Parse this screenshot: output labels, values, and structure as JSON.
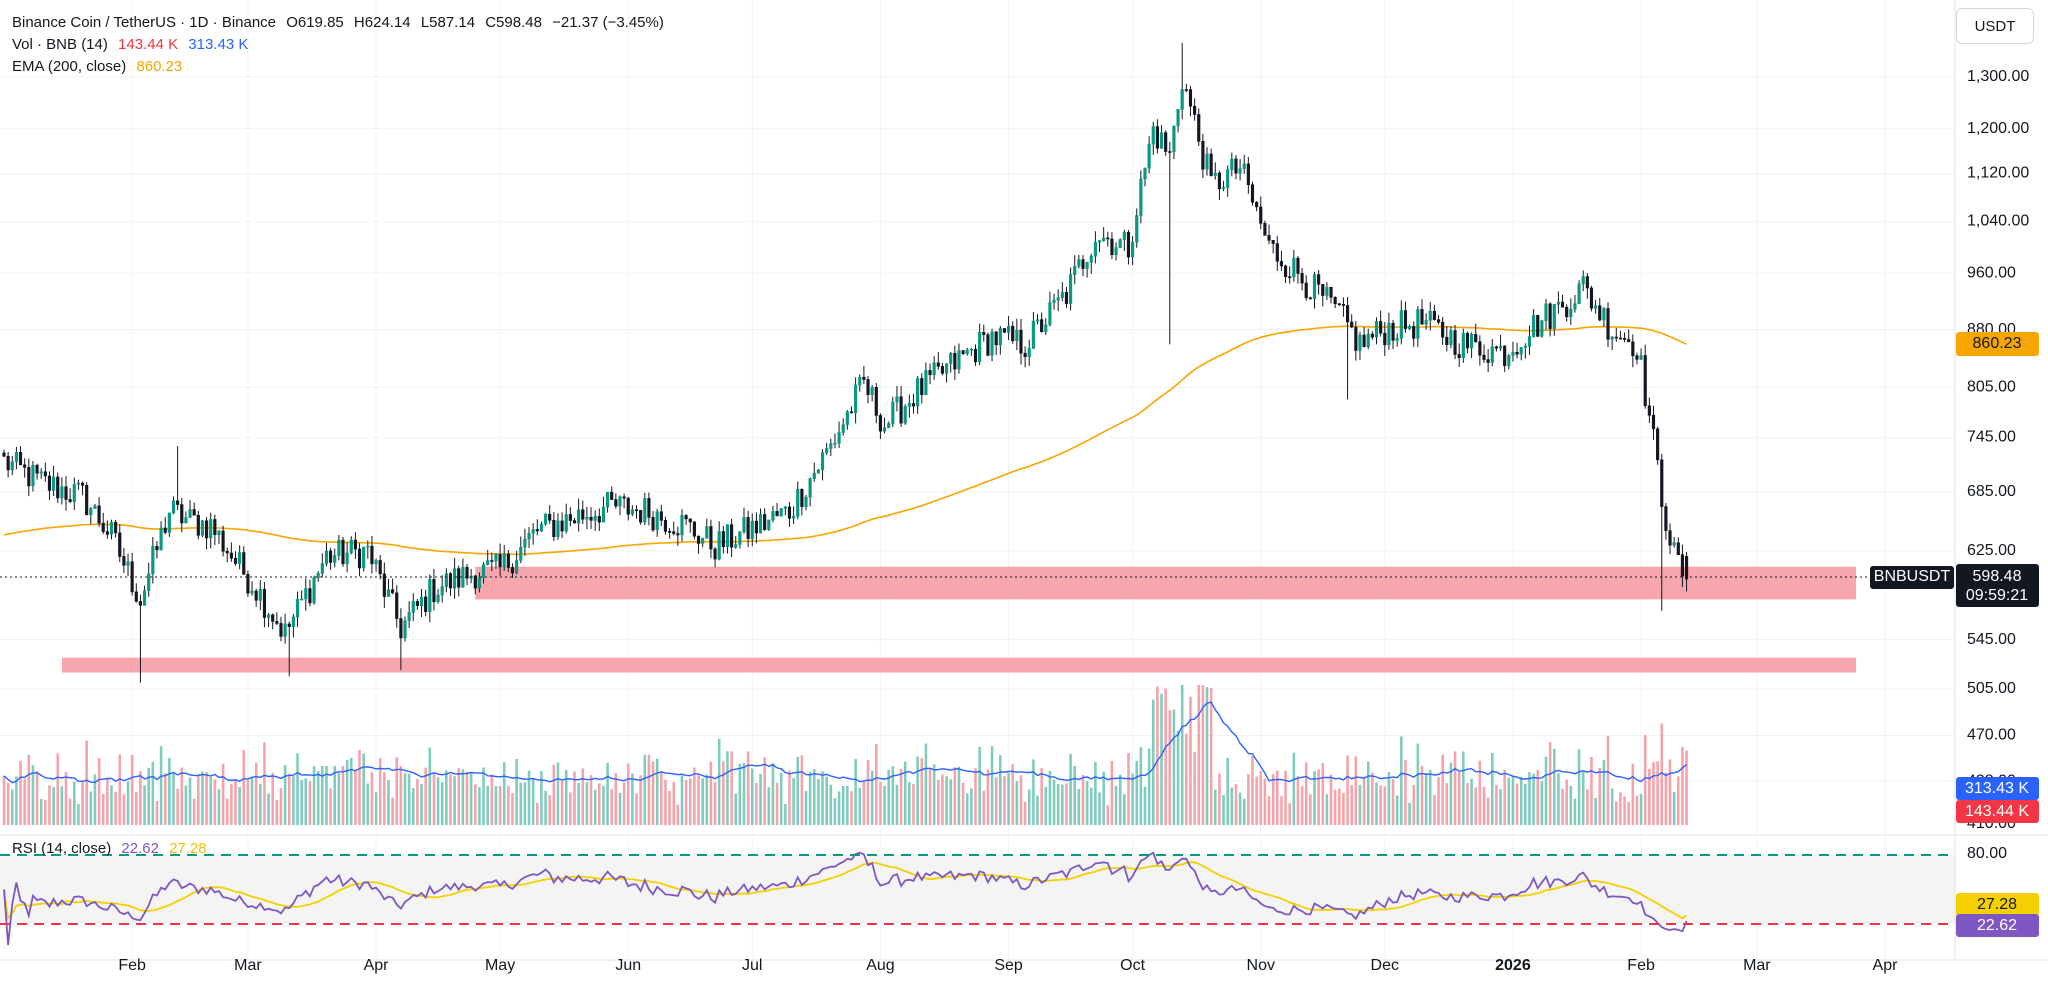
{
  "legend": {
    "title": "Binance Coin / TetherUS · 1D · Binance",
    "open": "O619.85",
    "high": "H624.14",
    "low": "L587.14",
    "close": "C598.48",
    "change": "−21.37 (−3.45%)",
    "vol_label": "Vol · BNB (14)",
    "vol_value": "143.44 K",
    "vol_ma": "313.43 K",
    "ema_label": "EMA (200, close)",
    "ema_value": "860.23",
    "rsi_label": "RSI (14, close)",
    "rsi_value": "22.62",
    "rsi_ma": "27.28"
  },
  "currency": "USDT",
  "symbol_tag": "BNBUSDT",
  "price_tag": "598.48",
  "countdown": "09:59:21",
  "ema_tag": "860.23",
  "vol_ma_tag": "313.43 K",
  "vol_tag": "143.44 K",
  "rsi_ma_tag": "27.28",
  "rsi_tag": "22.62",
  "colors": {
    "up": "#089981",
    "down": "#f23645",
    "ema": "#f7a600",
    "vol_ma": "#2962ff",
    "rsi": "#7e57c2",
    "rsi_ma": "#f5d000",
    "zone": "#f7a1a9"
  },
  "chart_data": [
    {
      "type": "candlestick",
      "title": "Binance Coin / TetherUS · 1D · Binance",
      "price_axis_ticks": [
        "1,300.00",
        "1,200.00",
        "1,120.00",
        "1,040.00",
        "960.00",
        "880.00",
        "805.00",
        "745.00",
        "685.00",
        "625.00",
        "545.00",
        "505.00",
        "470.00",
        "438.00",
        "410.00"
      ],
      "price_axis_values": [
        1300,
        1200,
        1120,
        1040,
        960,
        880,
        805,
        745,
        685,
        625,
        545,
        505,
        470,
        438,
        410
      ],
      "time_axis_labels": [
        "Feb",
        "Mar",
        "Apr",
        "May",
        "Jun",
        "Jul",
        "Aug",
        "Sep",
        "Oct",
        "Nov",
        "Dec",
        "2026",
        "Feb",
        "Mar",
        "Apr"
      ],
      "time_axis_dates": [
        "2025-02-01",
        "2025-03-01",
        "2025-04-01",
        "2025-05-01",
        "2025-06-01",
        "2025-07-01",
        "2025-08-01",
        "2025-09-01",
        "2025-10-01",
        "2025-11-01",
        "2025-12-01",
        "2026-01-01",
        "2026-02-01",
        "2026-03-01",
        "2026-04-01"
      ],
      "price_scale": "log",
      "last_close": 598.48,
      "anchors_close": [
        [
          "2025-01-01",
          718
        ],
        [
          "2025-01-10",
          695
        ],
        [
          "2025-01-20",
          680
        ],
        [
          "2025-01-27",
          640
        ],
        [
          "2025-02-03",
          580
        ],
        [
          "2025-02-10",
          665
        ],
        [
          "2025-02-15",
          655
        ],
        [
          "2025-02-20",
          650
        ],
        [
          "2025-02-27",
          610
        ],
        [
          "2025-03-03",
          590
        ],
        [
          "2025-03-10",
          550
        ],
        [
          "2025-03-20",
          620
        ],
        [
          "2025-03-30",
          625
        ],
        [
          "2025-04-07",
          555
        ],
        [
          "2025-04-15",
          590
        ],
        [
          "2025-04-25",
          605
        ],
        [
          "2025-05-01",
          607
        ],
        [
          "2025-05-10",
          645
        ],
        [
          "2025-05-20",
          660
        ],
        [
          "2025-05-28",
          670
        ],
        [
          "2025-06-05",
          665
        ],
        [
          "2025-06-15",
          650
        ],
        [
          "2025-06-22",
          630
        ],
        [
          "2025-06-30",
          645
        ],
        [
          "2025-07-10",
          665
        ],
        [
          "2025-07-20",
          735
        ],
        [
          "2025-07-28",
          810
        ],
        [
          "2025-08-02",
          760
        ],
        [
          "2025-08-10",
          800
        ],
        [
          "2025-08-20",
          840
        ],
        [
          "2025-08-28",
          870
        ],
        [
          "2025-09-05",
          860
        ],
        [
          "2025-09-15",
          930
        ],
        [
          "2025-09-22",
          1020
        ],
        [
          "2025-09-30",
          1000
        ],
        [
          "2025-10-06",
          1200
        ],
        [
          "2025-10-10",
          1150
        ],
        [
          "2025-10-13",
          1300
        ],
        [
          "2025-10-20",
          1100
        ],
        [
          "2025-10-27",
          1130
        ],
        [
          "2025-11-03",
          1000
        ],
        [
          "2025-11-10",
          960
        ],
        [
          "2025-11-20",
          900
        ],
        [
          "2025-11-25",
          860
        ],
        [
          "2025-12-01",
          880
        ],
        [
          "2025-12-10",
          890
        ],
        [
          "2025-12-20",
          860
        ],
        [
          "2025-12-30",
          850
        ],
        [
          "2026-01-05",
          880
        ],
        [
          "2026-01-12",
          910
        ],
        [
          "2026-01-18",
          940
        ],
        [
          "2026-01-25",
          880
        ],
        [
          "2026-01-31",
          860
        ],
        [
          "2026-02-03",
          770
        ],
        [
          "2026-02-06",
          680
        ],
        [
          "2026-02-09",
          620
        ],
        [
          "2026-02-12",
          598.48
        ]
      ],
      "ema_200": {
        "name": "EMA (200, close)",
        "last": 860.23
      },
      "support_zones": [
        {
          "low": 580,
          "high": 610,
          "start": "2025-04-25",
          "end": "2026-03-25"
        },
        {
          "low": 518,
          "high": 530,
          "start": "2025-01-15",
          "end": "2026-03-25"
        }
      ]
    },
    {
      "type": "bar",
      "title": "Vol · BNB (14)",
      "last_volume": "143.44 K",
      "volume_ma_last": "313.43 K"
    },
    {
      "type": "line",
      "title": "RSI (14, close)",
      "ylim": [
        0,
        100
      ],
      "levels": [
        80,
        20
      ],
      "level_tick": "80.00",
      "series": [
        {
          "name": "RSI",
          "last": 22.62
        },
        {
          "name": "RSI MA",
          "last": 27.28
        }
      ]
    }
  ]
}
